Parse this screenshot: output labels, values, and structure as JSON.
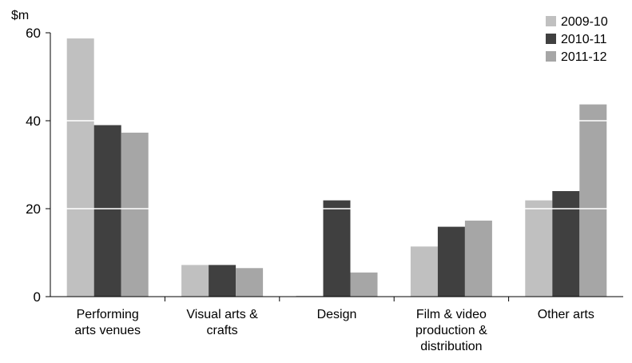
{
  "chart_data": {
    "type": "bar",
    "ylabel": "$m",
    "ylim": [
      0,
      60
    ],
    "yticks": [
      0,
      20,
      40,
      60
    ],
    "grid": "white lines drawn across bars at y tick values",
    "legend_position": "top-right",
    "categories": [
      [
        "Performing",
        "arts venues"
      ],
      [
        "Visual arts &",
        "crafts"
      ],
      [
        "Design"
      ],
      [
        "Film & video",
        "production &",
        "distribution"
      ],
      [
        "Other arts"
      ]
    ],
    "series": [
      {
        "name": "2009-10",
        "color": "#c0c0c0",
        "values": [
          58.7,
          7.2,
          0.2,
          11.4,
          21.9
        ]
      },
      {
        "name": "2010-11",
        "color": "#404040",
        "values": [
          39.0,
          7.2,
          21.9,
          15.9,
          24.0
        ]
      },
      {
        "name": "2011-12",
        "color": "#a6a6a6",
        "values": [
          37.3,
          6.5,
          5.5,
          17.3,
          43.7
        ]
      }
    ]
  }
}
